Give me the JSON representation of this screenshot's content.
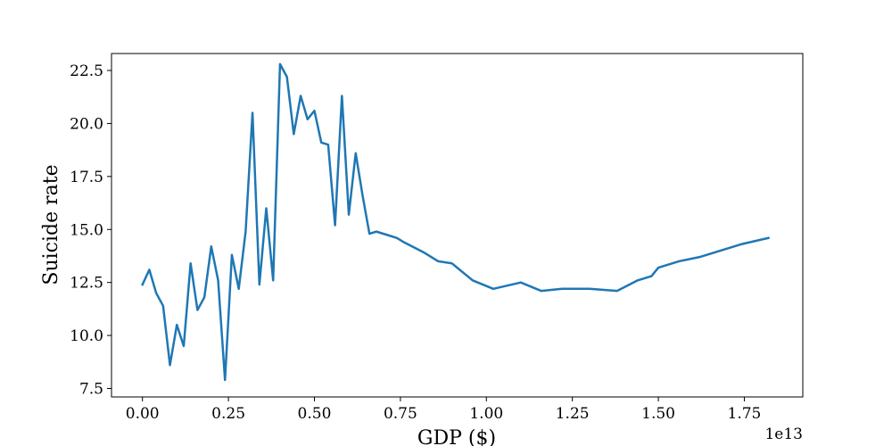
{
  "chart_data": {
    "type": "line",
    "xlabel": "GDP ($)",
    "ylabel": "Suicide rate",
    "x_offset_label": "1e13",
    "x_scale": 10000000000000.0,
    "xlim": [
      -0.09,
      1.92
    ],
    "ylim": [
      7.1,
      23.3
    ],
    "xticks": [
      0.0,
      0.25,
      0.5,
      0.75,
      1.0,
      1.25,
      1.5,
      1.75
    ],
    "xtick_labels": [
      "0.00",
      "0.25",
      "0.50",
      "0.75",
      "1.00",
      "1.25",
      "1.50",
      "1.75"
    ],
    "yticks": [
      7.5,
      10.0,
      12.5,
      15.0,
      17.5,
      20.0,
      22.5
    ],
    "ytick_labels": [
      "7.5",
      "10.0",
      "12.5",
      "15.0",
      "17.5",
      "20.0",
      "22.5"
    ],
    "grid": false,
    "line_color": "#1f77b4",
    "series": [
      {
        "x": [
          0.0,
          0.02,
          0.04,
          0.06,
          0.08,
          0.1,
          0.12,
          0.14,
          0.16,
          0.18,
          0.2,
          0.22,
          0.24,
          0.26,
          0.28,
          0.3,
          0.32,
          0.34,
          0.36,
          0.38,
          0.4,
          0.42,
          0.44,
          0.46,
          0.48,
          0.5,
          0.52,
          0.54,
          0.56,
          0.58,
          0.6,
          0.62,
          0.64,
          0.66,
          0.68,
          0.72,
          0.74,
          0.76,
          0.82,
          0.86,
          0.9,
          0.96,
          1.02,
          1.1,
          1.16,
          1.22,
          1.3,
          1.38,
          1.44,
          1.48,
          1.5,
          1.56,
          1.62,
          1.66,
          1.74,
          1.82
        ],
        "y": [
          12.4,
          13.1,
          12.0,
          11.4,
          8.6,
          10.5,
          9.5,
          13.4,
          11.2,
          11.8,
          14.2,
          12.6,
          7.9,
          13.8,
          12.2,
          14.9,
          20.5,
          12.4,
          16.0,
          12.6,
          22.8,
          22.2,
          19.5,
          21.3,
          20.2,
          20.6,
          19.1,
          19.0,
          15.2,
          21.3,
          15.7,
          18.6,
          16.6,
          14.8,
          14.9,
          14.7,
          14.6,
          14.4,
          13.9,
          13.5,
          13.4,
          12.6,
          12.2,
          12.5,
          12.1,
          12.2,
          12.2,
          12.1,
          12.6,
          12.8,
          13.2,
          13.5,
          13.7,
          13.9,
          14.3,
          14.6
        ]
      }
    ]
  }
}
